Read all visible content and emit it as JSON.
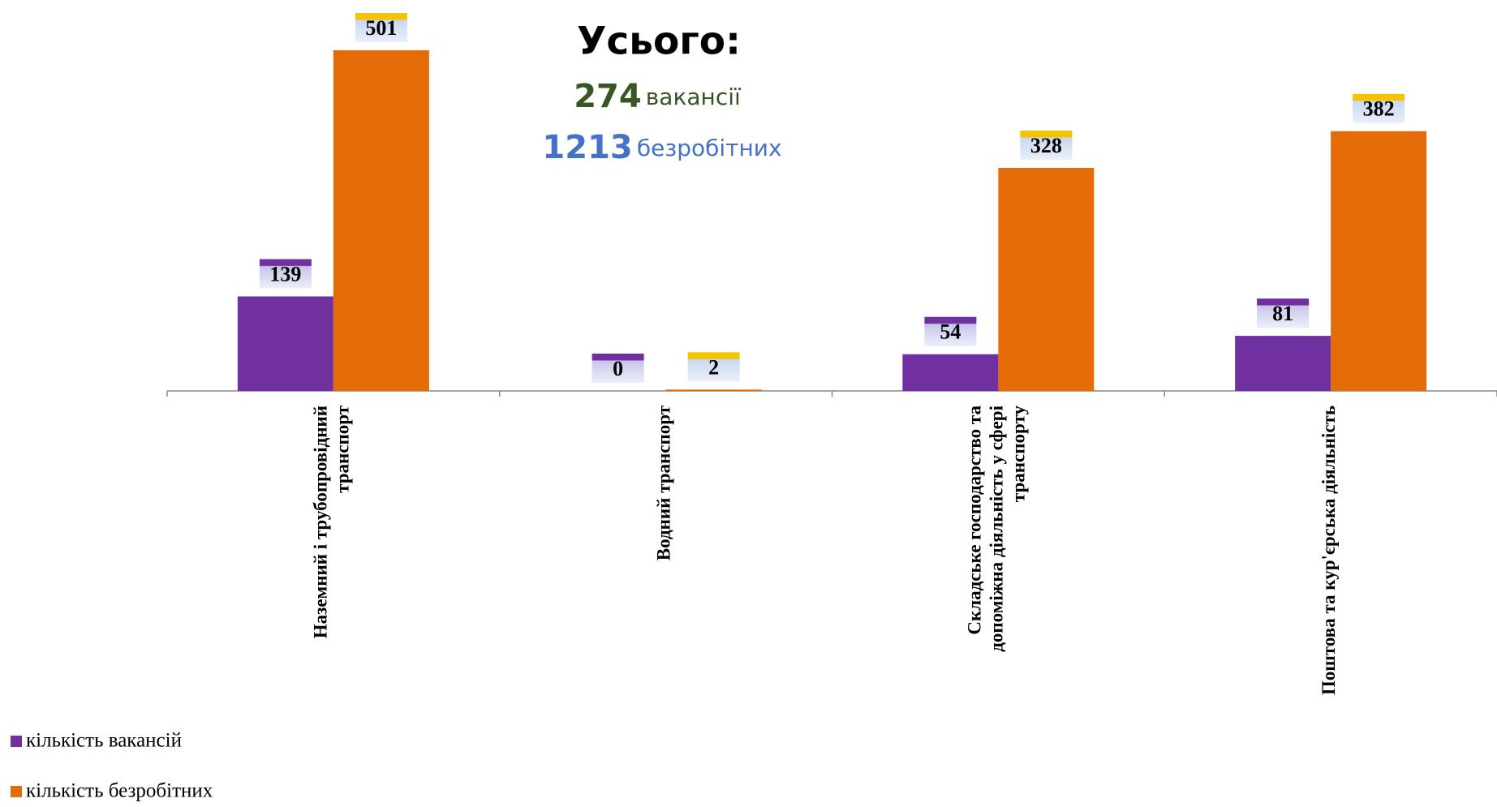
{
  "chart_data": {
    "type": "bar",
    "categories": [
      "Наземний і трубопровідний транспорт",
      "Водний транспорт",
      "Складське господарство та допоміжна діяльність у сфері транспорту",
      "Поштова та кур'єрська діяльність"
    ],
    "series": [
      {
        "name": "кількість вакансій",
        "color": "#7030a0",
        "values": [
          139,
          0,
          54,
          81
        ]
      },
      {
        "name": "кількість безробітних",
        "color": "#e36c09",
        "values": [
          501,
          2,
          328,
          382
        ]
      }
    ],
    "annotation": {
      "title": "Усього:",
      "vacancies": 274,
      "vacancies_label": "вакансії",
      "unemployed": 1213,
      "unemployed_label": "безробітних"
    },
    "legend": "bottom-left"
  }
}
